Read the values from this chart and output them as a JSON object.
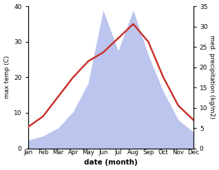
{
  "months": [
    "Jan",
    "Feb",
    "Mar",
    "Apr",
    "May",
    "Jun",
    "Jul",
    "Aug",
    "Sep",
    "Oct",
    "Nov",
    "Dec"
  ],
  "temp": [
    6.0,
    9.0,
    14.5,
    20.0,
    24.5,
    27.0,
    31.0,
    35.0,
    30.0,
    20.0,
    12.0,
    8.0
  ],
  "precip": [
    2,
    3,
    5,
    9,
    16,
    34,
    24,
    34,
    23,
    14,
    7,
    4
  ],
  "temp_color": "#c8302a",
  "precip_fill_color": "#bbc5ee",
  "temp_ylim": [
    0,
    40
  ],
  "precip_ylim": [
    0,
    35
  ],
  "temp_yticks": [
    0,
    10,
    20,
    30,
    40
  ],
  "precip_yticks": [
    0,
    5,
    10,
    15,
    20,
    25,
    30,
    35
  ],
  "xlabel": "date (month)",
  "ylabel_left": "max temp (C)",
  "ylabel_right": "med. precipitation (kg/m2)"
}
